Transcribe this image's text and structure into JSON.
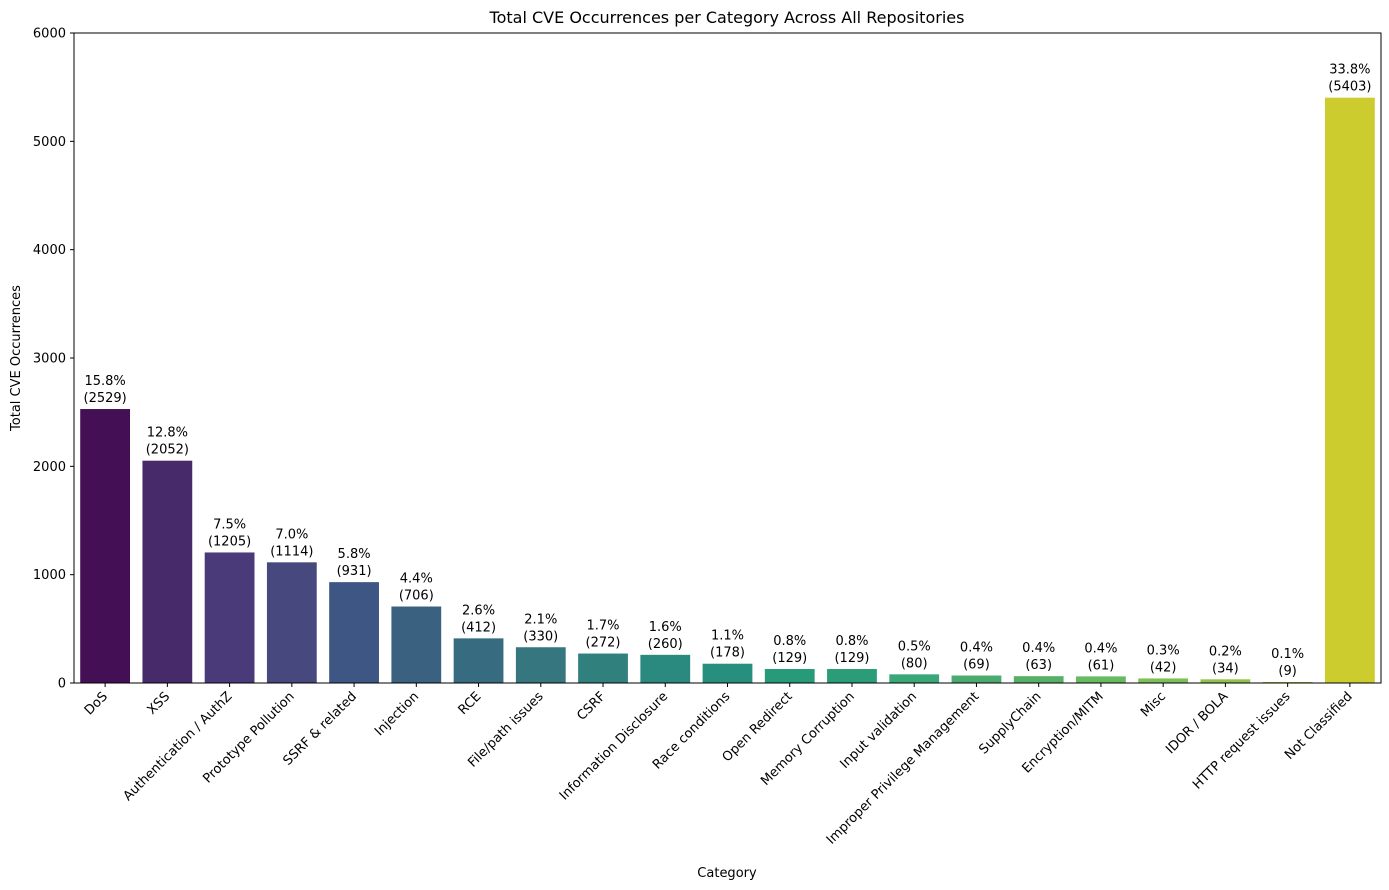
{
  "chart_data": {
    "type": "bar",
    "title": "Total CVE Occurrences per Category Across All Repositories",
    "xlabel": "Category",
    "ylabel": "Total CVE Occurrences",
    "ylim": [
      0,
      6000
    ],
    "yticks": [
      0,
      1000,
      2000,
      3000,
      4000,
      5000,
      6000
    ],
    "grid": false,
    "legend": "none",
    "categories": [
      "DoS",
      "XSS",
      "Authentication / AuthZ",
      "Prototype Pollution",
      "SSRF & related",
      "Injection",
      "RCE",
      "File/path issues",
      "CSRF",
      "Information Disclosure",
      "Race conditions",
      "Open Redirect",
      "Memory Corruption",
      "Input validation",
      "Improper Privilege Management",
      "SupplyChain",
      "Encryption/MITM",
      "Misc",
      "IDOR / BOLA",
      "HTTP request issues",
      "Not Classified"
    ],
    "values": [
      2529,
      2052,
      1205,
      1114,
      931,
      706,
      412,
      330,
      272,
      260,
      178,
      129,
      129,
      80,
      69,
      63,
      61,
      42,
      34,
      9,
      5403
    ],
    "percent_labels": [
      "15.8%",
      "12.8%",
      "7.5%",
      "7.0%",
      "5.8%",
      "4.4%",
      "2.6%",
      "2.1%",
      "1.7%",
      "1.6%",
      "1.1%",
      "0.8%",
      "0.8%",
      "0.5%",
      "0.4%",
      "0.4%",
      "0.4%",
      "0.3%",
      "0.2%",
      "0.1%",
      "33.8%"
    ],
    "value_labels": [
      "(2529)",
      "(2052)",
      "(1205)",
      "(1114)",
      "(931)",
      "(706)",
      "(412)",
      "(330)",
      "(272)",
      "(260)",
      "(178)",
      "(129)",
      "(129)",
      "(80)",
      "(69)",
      "(63)",
      "(61)",
      "(42)",
      "(34)",
      "(9)",
      "(5403)"
    ],
    "colors": [
      "#440f55",
      "#472a6a",
      "#4a3a7a",
      "#47487e",
      "#3e5683",
      "#3b6181",
      "#376b7f",
      "#35767f",
      "#30807e",
      "#2b8a7f",
      "#288e7d",
      "#279a79",
      "#2a9d78",
      "#39a777",
      "#4baa6f",
      "#58b068",
      "#66ba60",
      "#7cc057",
      "#8fc34b",
      "#b0c640",
      "#cdcc2f"
    ]
  }
}
